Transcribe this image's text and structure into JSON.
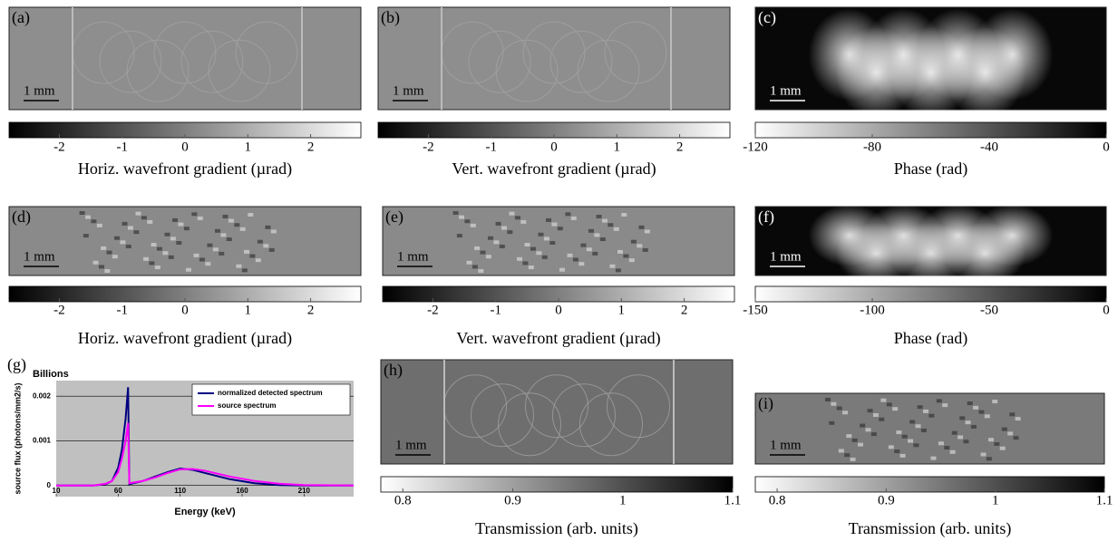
{
  "panels": [
    {
      "label": "(a)",
      "scale": "1 mm",
      "colorbar": {
        "lim": [
          -2.8,
          2.8
        ],
        "ticks": [
          -2,
          -1,
          0,
          1,
          2
        ],
        "colors": [
          "#000000",
          "#ffffff"
        ],
        "label": "Horiz. wavefront gradient (µrad)"
      }
    },
    {
      "label": "(b)",
      "scale": "1 mm",
      "colorbar": {
        "lim": [
          -2.8,
          2.8
        ],
        "ticks": [
          -2,
          -1,
          0,
          1,
          2
        ],
        "colors": [
          "#000000",
          "#ffffff"
        ],
        "label": "Vert. wavefront gradient (µrad)"
      }
    },
    {
      "label": "(c)",
      "scale": "1 mm",
      "colorbar": {
        "lim": [
          -120,
          0
        ],
        "ticks": [
          -120,
          -80,
          -40,
          0
        ],
        "colors": [
          "#ffffff",
          "#000000"
        ],
        "label": "Phase (rad)"
      }
    },
    {
      "label": "(d)",
      "scale": "1 mm",
      "colorbar": {
        "lim": [
          -2.8,
          2.8
        ],
        "ticks": [
          -2,
          -1,
          0,
          1,
          2
        ],
        "colors": [
          "#000000",
          "#ffffff"
        ],
        "label": "Horiz. wavefront gradient (µrad)"
      }
    },
    {
      "label": "(e)",
      "scale": "1 mm",
      "colorbar": {
        "lim": [
          -2.8,
          2.8
        ],
        "ticks": [
          -2,
          -1,
          0,
          1,
          2
        ],
        "colors": [
          "#000000",
          "#ffffff"
        ],
        "label": "Vert. wavefront gradient (µrad)"
      }
    },
    {
      "label": "(f)",
      "scale": "1 mm",
      "colorbar": {
        "lim": [
          -150,
          0
        ],
        "ticks": [
          -150,
          -100,
          -50,
          0
        ],
        "colors": [
          "#ffffff",
          "#000000"
        ],
        "label": "Phase (rad)"
      }
    },
    {
      "label": "(h)",
      "scale": "1 mm",
      "colorbar": {
        "lim": [
          0.78,
          1.1
        ],
        "ticks": [
          0.8,
          0.9,
          1,
          1.1
        ],
        "colors": [
          "#ffffff",
          "#000000"
        ],
        "label": "Transmission (arb. units)"
      }
    },
    {
      "label": "(i)",
      "scale": "1 mm",
      "colorbar": {
        "lim": [
          0.78,
          1.1
        ],
        "ticks": [
          0.8,
          0.9,
          1,
          1.1
        ],
        "colors": [
          "#ffffff",
          "#000000"
        ],
        "label": "Transmission (arb. units)"
      }
    }
  ],
  "chart_data": {
    "type": "line",
    "panel_label": "(g)",
    "title": "Billions",
    "x_label": "Energy (keV)",
    "y_label": "source flux (photons/mm2/s)",
    "x": [
      10,
      40,
      50,
      55,
      60,
      63,
      66,
      68,
      69,
      80,
      90,
      100,
      110,
      120,
      130,
      150,
      170,
      190,
      210,
      250
    ],
    "series": [
      {
        "name": "normalized detected spectrum",
        "color": "#000080",
        "values": [
          0,
          0,
          3e-05,
          0.0001,
          0.0004,
          0.0008,
          0.0015,
          0.0022,
          3e-05,
          0.0001,
          0.0002,
          0.0003,
          0.00038,
          0.00035,
          0.00028,
          0.00014,
          5e-05,
          1e-05,
          0,
          0
        ]
      },
      {
        "name": "source spectrum",
        "color": "#ff00ff",
        "values": [
          0,
          0,
          4e-05,
          0.0001,
          0.0003,
          0.0006,
          0.001,
          0.0014,
          5e-05,
          0.0001,
          0.00018,
          0.00028,
          0.00036,
          0.00037,
          0.00033,
          0.0002,
          0.0001,
          4e-05,
          1e-05,
          0
        ]
      }
    ],
    "xlim": [
      10,
      250
    ],
    "xticks": [
      10,
      60,
      110,
      160,
      210
    ],
    "ylim": [
      -0.00025,
      0.00235
    ],
    "yticks": [
      0,
      0.001,
      0.002
    ],
    "grid": true
  }
}
